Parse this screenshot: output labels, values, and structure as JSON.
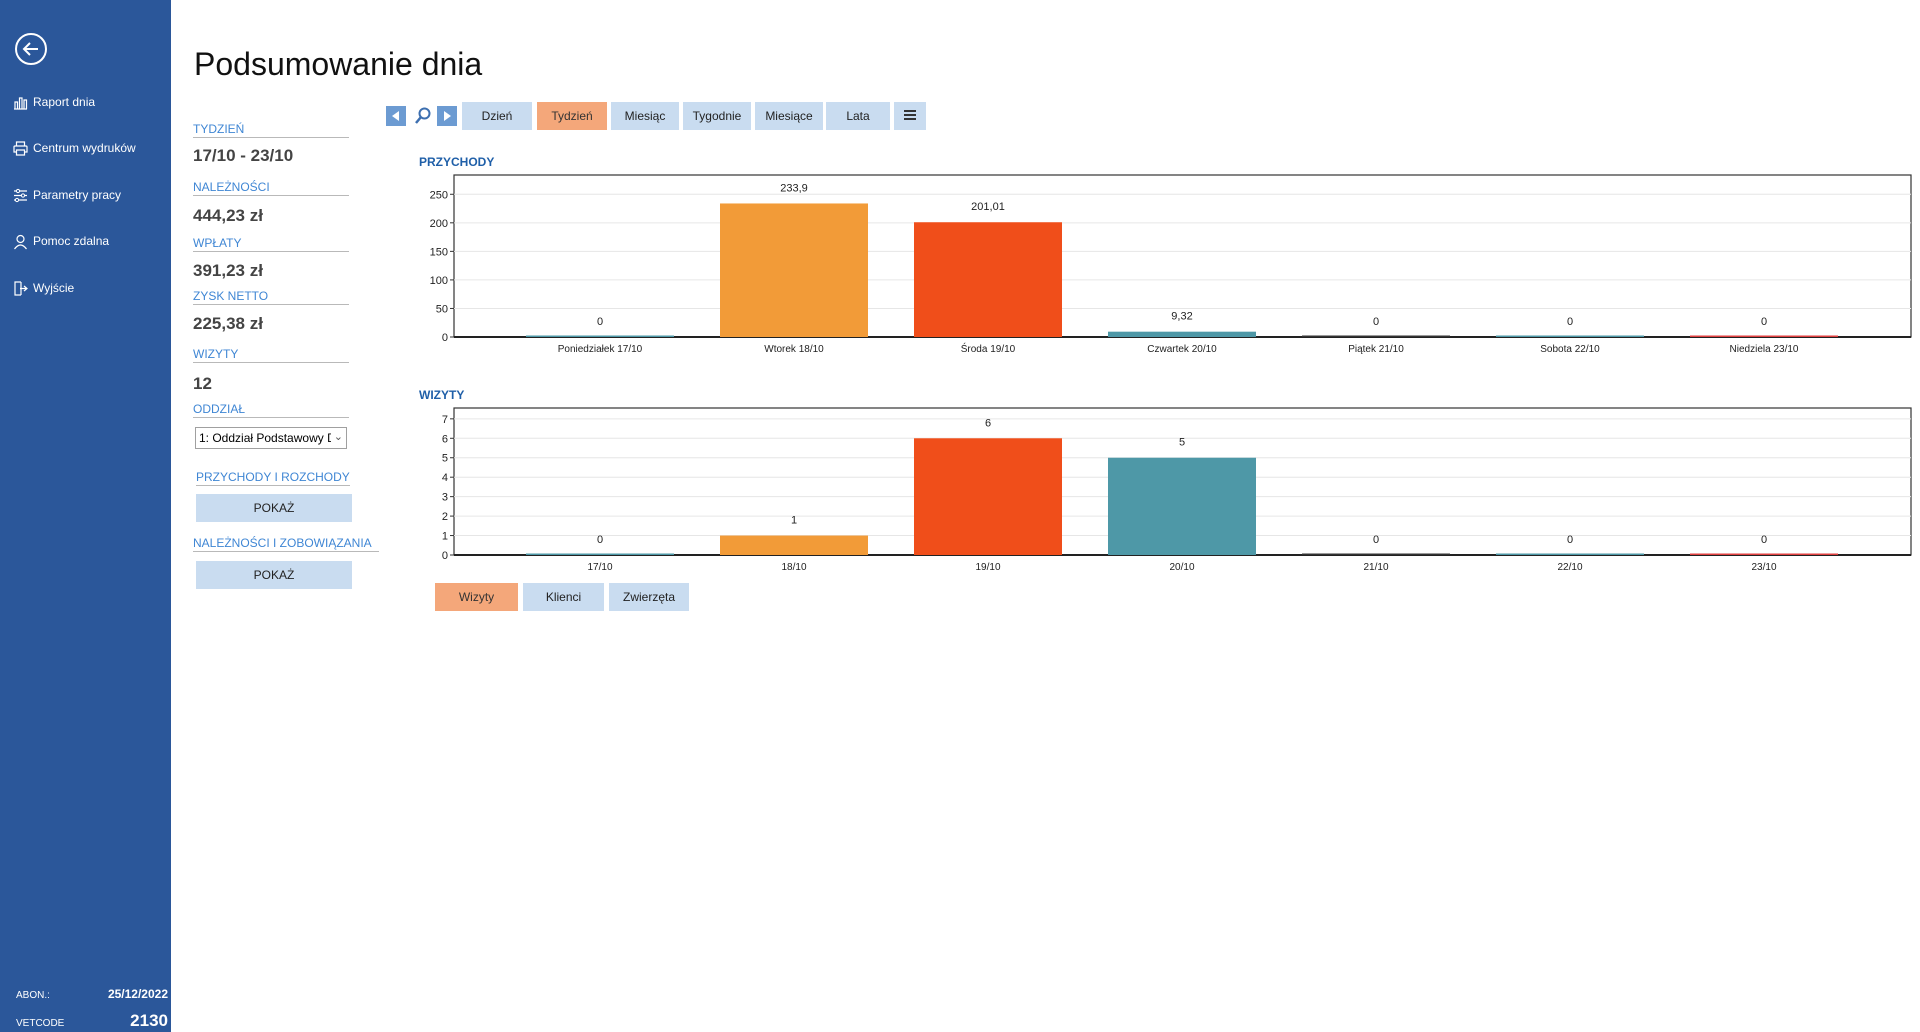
{
  "sidebar": {
    "back_icon": "arrow-left-circle-icon",
    "items": [
      {
        "label": "Raport dnia",
        "icon": "bar-chart-icon"
      },
      {
        "label": "Centrum wydruków",
        "icon": "printer-icon"
      },
      {
        "label": "Parametry pracy",
        "icon": "sliders-icon"
      },
      {
        "label": "Pomoc zdalna",
        "icon": "support-user-icon"
      },
      {
        "label": "Wyjście",
        "icon": "exit-icon"
      }
    ],
    "footer": {
      "abon_label": "ABON.:",
      "abon_value": "25/12/2022",
      "vetcode_label": "VETCODE",
      "vetcode_value": "2130"
    }
  },
  "page_title": "Podsumowanie dnia",
  "summary": {
    "week_label": "TYDZIEŃ",
    "week_value": "17/10 - 23/10",
    "receivables_label": "NALEŻNOŚCI",
    "receivables_value": "444,23 zł",
    "payments_label": "WPŁATY",
    "payments_value": "391,23 zł",
    "profit_label": "ZYSK NETTO",
    "profit_value": "225,38 zł",
    "visits_label": "WIZYTY",
    "visits_value": "12",
    "branch_label": "ODDZIAŁ",
    "branch_value": "1: Oddział Podstawowy D",
    "income_expense_label": "PRZYCHODY I ROZCHODY",
    "income_expense_button": "POKAŻ",
    "receivables_liabilities_label": "NALEŻNOŚCI I ZOBOWIĄZANIA",
    "receivables_liabilities_button": "POKAŻ"
  },
  "toolbar": {
    "prev_icon": "triangle-left-icon",
    "search_icon": "magnifier-icon",
    "next_icon": "triangle-right-icon",
    "periods": [
      "Dzień",
      "Tydzień",
      "Miesiąc",
      "Tygodnie",
      "Miesiące",
      "Lata"
    ],
    "active_period": "Tydzień",
    "menu_icon": "hamburger-menu-icon"
  },
  "bottom_buttons": [
    "Wizyty",
    "Klienci",
    "Zwierzęta"
  ],
  "active_bottom": "Wizyty",
  "colors": {
    "sidebar": "#2b579a",
    "accent_orange": "#f4a77a",
    "button_blue": "#c9dcf0",
    "section_title": "#1f5fa8"
  },
  "chart_data": [
    {
      "type": "bar",
      "title": "PRZYCHODY",
      "categories": [
        "Poniedziałek  17/10",
        "Wtorek  18/10",
        "Środa  19/10",
        "Czwartek  20/10",
        "Piątek  21/10",
        "Sobota  22/10",
        "Niedziela  23/10"
      ],
      "values": [
        0,
        233.9,
        201.01,
        9.32,
        0,
        0,
        0
      ],
      "value_labels": [
        "0",
        "233,9",
        "201,01",
        "9,32",
        "0",
        "0",
        "0"
      ],
      "colors": [
        "#4e98a7",
        "#f29b38",
        "#f04e1a",
        "#4e98a7",
        "#333333",
        "#4e98a7",
        "#e04040"
      ],
      "yticks": [
        "0",
        "50",
        "100",
        "150",
        "200",
        "250"
      ],
      "ylim": [
        0,
        275
      ],
      "grid": true
    },
    {
      "type": "bar",
      "title": "WIZYTY",
      "categories": [
        "17/10",
        "18/10",
        "19/10",
        "20/10",
        "21/10",
        "22/10",
        "23/10"
      ],
      "values": [
        0,
        1,
        6,
        5,
        0,
        0,
        0
      ],
      "value_labels": [
        "0",
        "1",
        "6",
        "5",
        "0",
        "0",
        "0"
      ],
      "colors": [
        "#4e98a7",
        "#f29b38",
        "#f04e1a",
        "#4e98a7",
        "#333333",
        "#4e98a7",
        "#e04040"
      ],
      "yticks": [
        "0",
        "1",
        "2",
        "3",
        "4",
        "5",
        "6",
        "7"
      ],
      "ylim": [
        0,
        7.3
      ],
      "grid": true
    }
  ]
}
